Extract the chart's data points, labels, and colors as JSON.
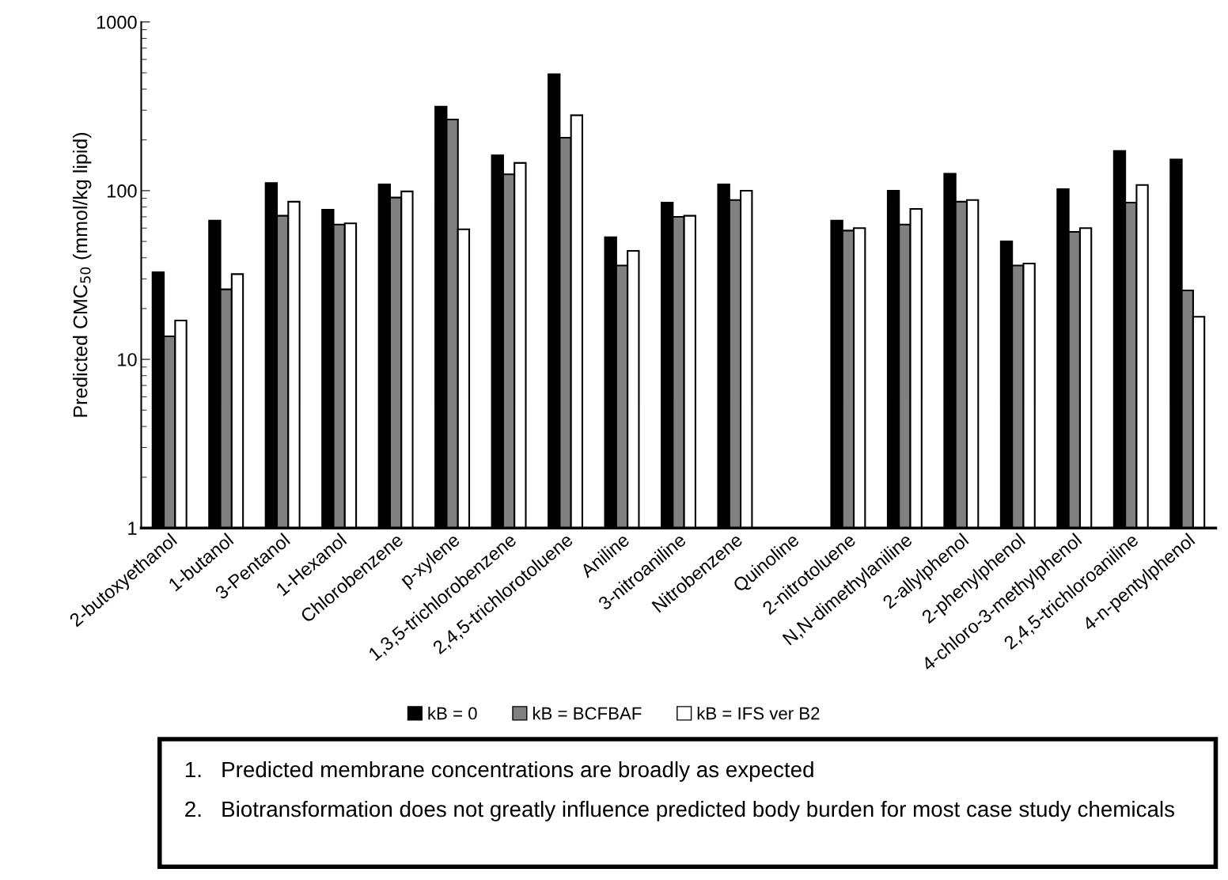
{
  "chart_data": {
    "type": "bar",
    "ylabel": "Predicted CMC$_{50}$ (mmol/kg lipid)",
    "categories": [
      "2-butoxyethanol",
      "1-butanol",
      "3-Pentanol",
      "1-Hexanol",
      "Chlorobenzene",
      "p-xylene",
      "1,3,5-trichlorobenzene",
      "2,4,5-trichlorotoluene",
      "Aniline",
      "3-nitroaniline",
      "Nitrobenzene",
      "Quinoline",
      "2-nitrotoluene",
      "N,N-dimethylaniline",
      "2-allylphenol",
      "2-phenylphenol",
      "4-chloro-3-methylphenol",
      "2,4,5-trichloroaniline",
      "4-n-pentylphenol"
    ],
    "series": [
      {
        "name": "kB = 0",
        "color": "#000000",
        "values": [
          32.8,
          66.5,
          111,
          77,
          109,
          315,
          162,
          490,
          53,
          85,
          109,
          null,
          66.5,
          100,
          126,
          50,
          102,
          172,
          153
        ]
      },
      {
        "name": "kB = BCFBAF",
        "color": "#808080",
        "values": [
          13.7,
          26,
          71,
          63,
          91,
          264,
          125,
          206,
          36,
          70,
          88,
          null,
          58,
          63,
          86,
          36,
          57,
          85,
          25.6
        ]
      },
      {
        "name": "kB = IFS ver B2",
        "color": "#ffffff",
        "values": [
          17,
          32,
          86,
          64,
          99,
          59,
          146,
          280,
          44,
          71,
          100,
          null,
          60,
          78,
          88,
          37,
          60,
          108,
          17.9
        ]
      }
    ],
    "log": "y",
    "ylim": [
      1,
      1000
    ],
    "yticks": [
      1,
      10,
      100,
      1000
    ],
    "grid": false,
    "legend": "bottom",
    "annotations": [
      "1.   Predicted membrane concentrations are broadly as expected",
      "2.   Biotransformation does not greatly influence predicted body burden for most case study chemicals"
    ]
  }
}
